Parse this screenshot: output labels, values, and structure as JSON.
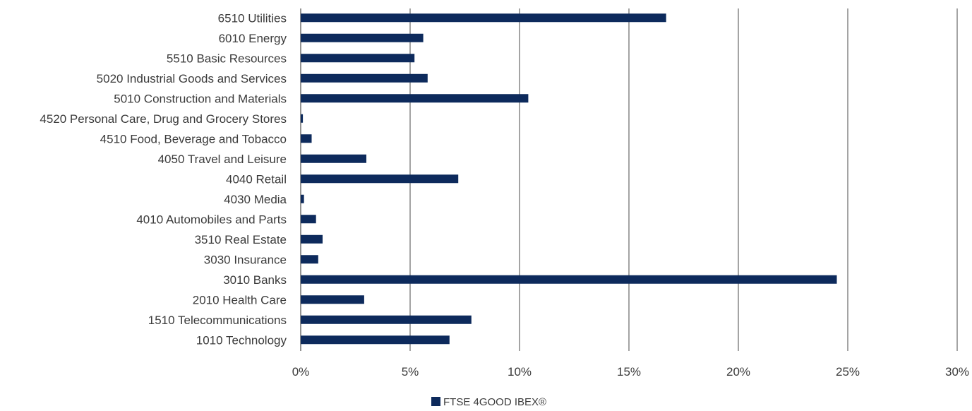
{
  "chart_data": {
    "type": "bar",
    "orientation": "horizontal",
    "categories": [
      "6510 Utilities",
      "6010 Energy",
      "5510 Basic Resources",
      "5020 Industrial Goods and Services",
      "5010 Construction and Materials",
      "4520 Personal Care, Drug and Grocery Stores",
      "4510 Food, Beverage and Tobacco",
      "4050 Travel and Leisure",
      "4040 Retail",
      "4030 Media",
      "4010 Automobiles and Parts",
      "3510 Real Estate",
      "3030 Insurance",
      "3010 Banks",
      "2010 Health Care",
      "1510 Telecommunications",
      "1010 Technology"
    ],
    "series": [
      {
        "name": "FTSE 4GOOD IBEX®",
        "color": "#0d2a5c",
        "values": [
          16.7,
          5.6,
          5.2,
          5.8,
          10.4,
          0.1,
          0.5,
          3.0,
          7.2,
          0.15,
          0.7,
          1.0,
          0.8,
          24.5,
          2.9,
          7.8,
          6.8
        ]
      }
    ],
    "x_ticks": [
      "0%",
      "5%",
      "10%",
      "15%",
      "20%",
      "25%",
      "30%"
    ],
    "xlim": [
      0,
      30
    ],
    "xlabel": "",
    "ylabel": "",
    "title": "",
    "grid": "vertical",
    "legend_position": "bottom-center",
    "gridline_color": "#595959"
  }
}
